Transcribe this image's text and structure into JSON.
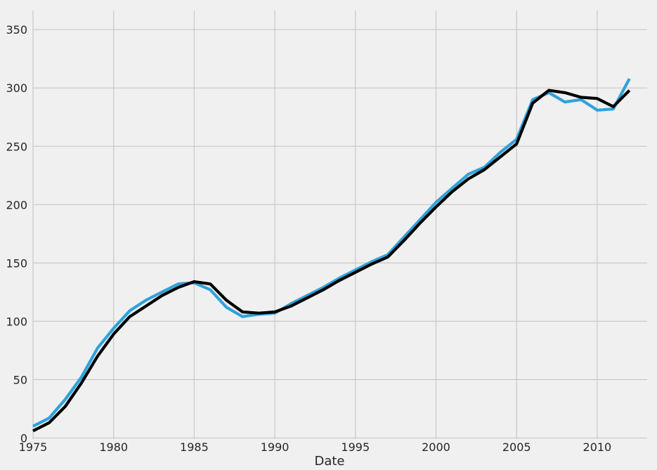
{
  "figure": {
    "background_color": "#f0f0f0",
    "grid_color": "#cbcbcb",
    "text_color": "#262626"
  },
  "chart_data": {
    "type": "line",
    "title": "",
    "xlabel": "Date",
    "ylabel": "",
    "grid": true,
    "legend": "none",
    "background": "#f0f0f0",
    "xlim": [
      1975,
      2013.1
    ],
    "ylim": [
      -1,
      366.4
    ],
    "xticks": [
      1975,
      1980,
      1985,
      1990,
      1995,
      2000,
      2005,
      2010
    ],
    "yticks": [
      0,
      50,
      100,
      150,
      200,
      250,
      300,
      350
    ],
    "x": [
      1975,
      1976,
      1977,
      1978,
      1979,
      1980,
      1981,
      1982,
      1983,
      1984,
      1985,
      1986,
      1987,
      1988,
      1989,
      1990,
      1991,
      1992,
      1993,
      1994,
      1995,
      1996,
      1997,
      1998,
      1999,
      2000,
      2001,
      2002,
      2003,
      2004,
      2005,
      2006,
      2007,
      2008,
      2009,
      2010,
      2011,
      2012
    ],
    "series": [
      {
        "name": "blue-series",
        "color": "#30a2da",
        "line_width": 4.2,
        "values": [
          10,
          17,
          33,
          52,
          77,
          94,
          109,
          118,
          125,
          132,
          133,
          127,
          112,
          104,
          106,
          107,
          115,
          122,
          129,
          137,
          144,
          151,
          157,
          172,
          187,
          202,
          214,
          226,
          232,
          245,
          256,
          290,
          296,
          288,
          290,
          281,
          282,
          308
        ]
      },
      {
        "name": "black-series",
        "color": "#000000",
        "line_width": 4.2,
        "values": [
          6,
          13,
          27,
          47,
          70,
          89,
          104,
          113,
          122,
          129,
          134,
          132,
          118,
          108,
          107,
          108,
          113,
          120,
          127,
          135,
          142,
          149,
          155,
          169,
          184,
          198,
          211,
          222,
          230,
          241,
          252,
          287,
          298,
          296,
          292,
          291,
          284,
          298
        ]
      }
    ]
  }
}
